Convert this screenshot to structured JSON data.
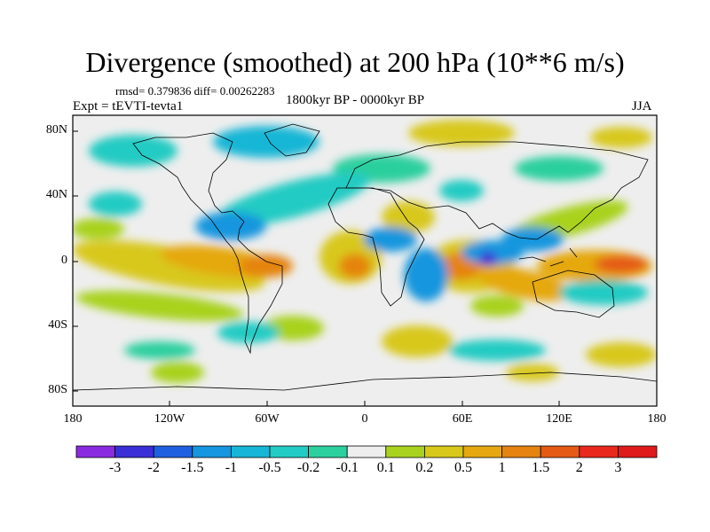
{
  "title": "Divergence (smoothed) at 200 hPa (10**6 m/s)",
  "stats": "rmsd= 0.379836 diff= 0.00262283",
  "experiment": "Expt = tEVTI-tevta1",
  "period": "1800kyr BP - 0000kyr BP",
  "season": "JJA",
  "axes": {
    "y_ticks": [
      "80N",
      "40N",
      "0",
      "40S",
      "80S"
    ],
    "x_ticks": [
      "180",
      "120W",
      "60W",
      "0",
      "60E",
      "120E",
      "180"
    ]
  },
  "colorbar": {
    "labels": [
      "-3",
      "-2",
      "-1.5",
      "-1",
      "-0.5",
      "-0.2",
      "-0.1",
      "0.1",
      "0.2",
      "0.5",
      "1",
      "1.5",
      "2",
      "3"
    ],
    "colors": [
      "#8a2be2",
      "#3a2fd6",
      "#1f60e0",
      "#1596de",
      "#17b6d6",
      "#22cbc3",
      "#2ccf9e",
      "#eeeeee",
      "#a8d21e",
      "#d8c81a",
      "#e5a810",
      "#e58410",
      "#e55a14",
      "#e8281c",
      "#e01a1a"
    ]
  },
  "colors": {
    "neutral": "#eeeeee",
    "coast": "#000000"
  }
}
